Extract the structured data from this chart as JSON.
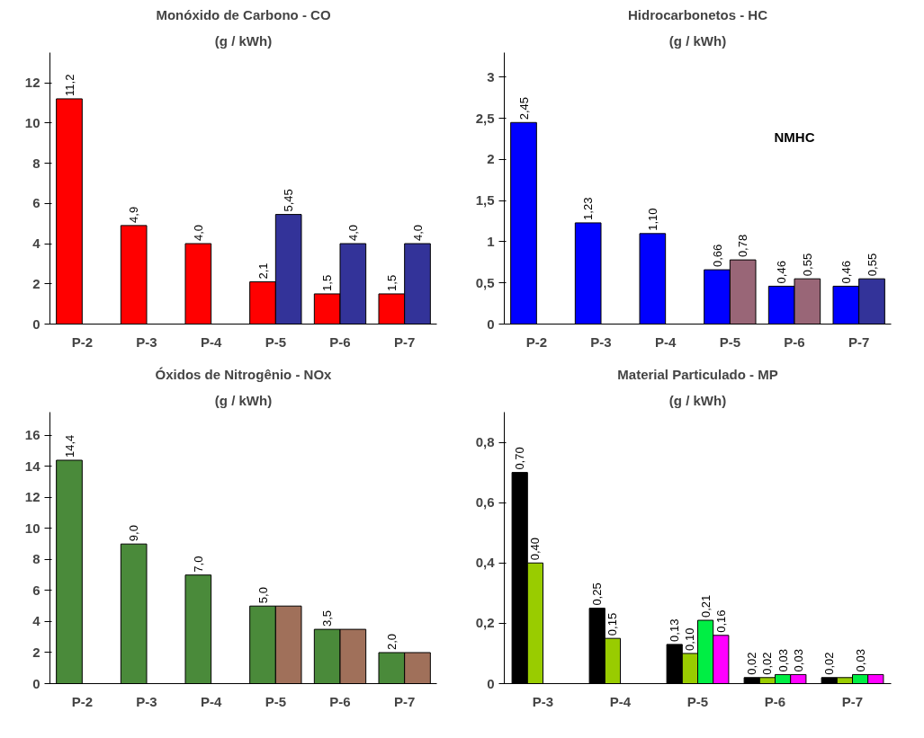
{
  "chart_data": [
    {
      "type": "bar",
      "title": "Monóxido de Carbono - CO",
      "subtitle": "(g / kWh)",
      "categories": [
        "P-2",
        "P-3",
        "P-4",
        "P-5",
        "P-6",
        "P-7"
      ],
      "ylim": [
        0,
        13.5
      ],
      "yticks": [
        0,
        2,
        4,
        6,
        8,
        10,
        12
      ],
      "grid": false,
      "series": [
        {
          "color": "#ff0000",
          "values": [
            11.2,
            4.9,
            4.0,
            2.1,
            1.5,
            1.5
          ],
          "value_labels": [
            "11,2",
            "4,9",
            "4,0",
            "2,1",
            "1,5",
            "1,5"
          ]
        },
        {
          "color": "#333399",
          "values": [
            null,
            null,
            null,
            5.45,
            4.0,
            4.0
          ],
          "value_labels": [
            null,
            null,
            null,
            "5,45",
            "4,0",
            "4,0"
          ]
        }
      ]
    },
    {
      "type": "bar",
      "title": "Hidrocarbonetos - HC",
      "subtitle": "(g / kWh)",
      "categories": [
        "P-2",
        "P-3",
        "P-4",
        "P-5",
        "P-6",
        "P-7"
      ],
      "ylim": [
        0,
        3.3
      ],
      "yticks": [
        0,
        {
          "value": 0.5,
          "label": "0,5"
        },
        1,
        {
          "value": 1.5,
          "label": "1,5"
        },
        2,
        {
          "value": 2.5,
          "label": "2,5"
        },
        3
      ],
      "grid": false,
      "annotations": [
        "NMHC"
      ],
      "series": [
        {
          "color": "#0000ff",
          "values": [
            2.45,
            1.23,
            1.1,
            0.66,
            0.46,
            0.46
          ],
          "value_labels": [
            "2,45",
            "1,23",
            "1,10",
            "0,66",
            "0,46",
            "0,46"
          ]
        },
        {
          "colors": [
            "#996677",
            "#996677",
            "#996677",
            "#996677",
            "#996677",
            "#333399"
          ],
          "values": [
            null,
            null,
            null,
            0.78,
            0.55,
            0.55
          ],
          "value_labels": [
            null,
            null,
            null,
            "0,78",
            "0,55",
            "0,55"
          ]
        }
      ]
    },
    {
      "type": "bar",
      "title": "Óxidos de Nitrogênio - NOx",
      "subtitle": "(g / kWh)",
      "categories": [
        "P-2",
        "P-3",
        "P-4",
        "P-5",
        "P-6",
        "P-7"
      ],
      "ylim": [
        0,
        17.5
      ],
      "yticks": [
        0,
        2,
        4,
        6,
        8,
        10,
        12,
        14,
        16
      ],
      "grid": false,
      "series": [
        {
          "color": "#4a8a3a",
          "values": [
            14.4,
            9.0,
            7.0,
            5.0,
            3.5,
            2.0
          ],
          "value_labels": [
            "14,4",
            "9,0",
            "7,0",
            "5,0",
            "3,5",
            "2,0"
          ]
        },
        {
          "color": "#a0705a",
          "values": [
            null,
            null,
            null,
            5.0,
            3.5,
            2.0
          ]
        }
      ]
    },
    {
      "type": "bar",
      "title": "Material Particulado - MP",
      "subtitle": "(g / kWh)",
      "categories": [
        "P-3",
        "P-4",
        "P-5",
        "P-6",
        "P-7"
      ],
      "ylim": [
        0,
        0.9
      ],
      "yticks": [
        0,
        {
          "value": 0.2,
          "label": "0,2"
        },
        {
          "value": 0.4,
          "label": "0,4"
        },
        {
          "value": 0.6,
          "label": "0,6"
        },
        {
          "value": 0.8,
          "label": "0,8"
        }
      ],
      "grid": false,
      "series": [
        {
          "color": "#000000",
          "values": [
            0.7,
            0.25,
            0.13,
            0.02,
            0.02
          ],
          "value_labels": [
            "0,70",
            "0,25",
            "0,13",
            "0,02",
            "0,02"
          ]
        },
        {
          "color": "#99cc00",
          "values": [
            0.4,
            0.15,
            0.1,
            0.02,
            0.02
          ],
          "value_labels": [
            "0,40",
            "0,15",
            "0,10",
            "0,02",
            null
          ]
        },
        {
          "color": "#00ee44",
          "values": [
            null,
            null,
            0.21,
            0.03,
            0.03
          ],
          "value_labels": [
            null,
            null,
            "0,21",
            "0,03",
            "0,03"
          ]
        },
        {
          "color": "#ff00ff",
          "values": [
            null,
            null,
            0.16,
            0.03,
            0.03
          ],
          "value_labels": [
            null,
            null,
            "0,16",
            "0,03",
            null
          ]
        }
      ]
    }
  ]
}
